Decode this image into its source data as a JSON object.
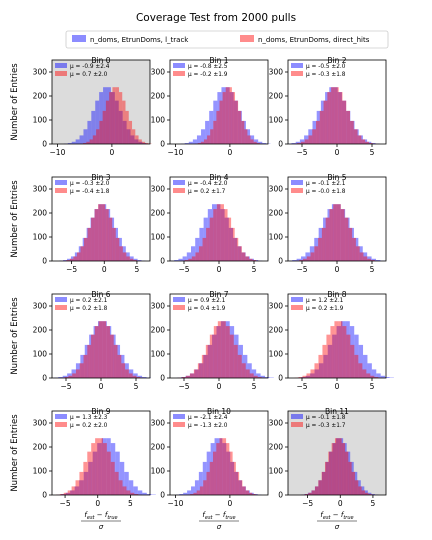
{
  "figure": {
    "title": "Coverage Test from 2000 pulls",
    "legend": [
      {
        "label": "n_doms, EtrunDoms, l_track",
        "color": "#7a7aff"
      },
      {
        "label": "n_doms, EtrunDoms, direct_hits",
        "color": "#ff7f7f"
      }
    ],
    "ylabel": "Number of Entries",
    "xlabel": "(f_est − f_true) / σ"
  },
  "colors": {
    "series_a": "#0000ff",
    "series_b": "#ff0000",
    "overlap_bg": "#dcdcdc"
  },
  "chart_data": [
    {
      "type": "bar",
      "title": "Bin 0",
      "highlight": true,
      "xlim": [
        -11,
        7
      ],
      "xticks": [
        -10,
        0
      ],
      "ylim": [
        0,
        350
      ],
      "yticks": [
        0,
        100,
        200,
        300
      ],
      "series": [
        {
          "name": "μ = -0.9 ±2.4",
          "mean": -0.9,
          "std": 2.4
        },
        {
          "name": "μ = 0.7 ±2.0",
          "mean": 0.7,
          "std": 2.0
        }
      ]
    },
    {
      "type": "bar",
      "title": "Bin 1",
      "highlight": false,
      "xlim": [
        -11,
        7
      ],
      "xticks": [
        -10,
        0
      ],
      "ylim": [
        0,
        350
      ],
      "yticks": [
        0,
        100,
        200,
        300
      ],
      "series": [
        {
          "name": "μ = -0.8 ±2.5",
          "mean": -0.8,
          "std": 2.5
        },
        {
          "name": "μ = -0.2 ±1.9",
          "mean": -0.2,
          "std": 1.9
        }
      ]
    },
    {
      "type": "bar",
      "title": "Bin 2",
      "highlight": false,
      "xlim": [
        -7,
        7
      ],
      "xticks": [
        -5,
        0,
        5
      ],
      "ylim": [
        0,
        350
      ],
      "yticks": [
        0,
        100,
        200,
        300
      ],
      "series": [
        {
          "name": "μ = -0.5 ±2.0",
          "mean": -0.5,
          "std": 2.0
        },
        {
          "name": "μ = -0.3 ±1.8",
          "mean": -0.3,
          "std": 1.8
        }
      ]
    },
    {
      "type": "bar",
      "title": "Bin 3",
      "highlight": false,
      "xlim": [
        -8,
        7
      ],
      "xticks": [
        -5,
        0,
        5
      ],
      "ylim": [
        0,
        350
      ],
      "yticks": [
        0,
        100,
        200,
        300
      ],
      "series": [
        {
          "name": "μ = -0.3 ±2.0",
          "mean": -0.3,
          "std": 2.0
        },
        {
          "name": "μ = -0.4 ±1.8",
          "mean": -0.4,
          "std": 1.8
        }
      ]
    },
    {
      "type": "bar",
      "title": "Bin 4",
      "highlight": false,
      "xlim": [
        -7,
        7
      ],
      "xticks": [
        -5,
        0,
        5
      ],
      "ylim": [
        0,
        350
      ],
      "yticks": [
        0,
        100,
        200,
        300
      ],
      "series": [
        {
          "name": "μ = -0.4 ±2.0",
          "mean": -0.4,
          "std": 2.0
        },
        {
          "name": "μ = 0.2 ±1.7",
          "mean": 0.2,
          "std": 1.7
        }
      ]
    },
    {
      "type": "bar",
      "title": "Bin 5",
      "highlight": false,
      "xlim": [
        -7,
        7
      ],
      "xticks": [
        -5,
        0,
        5
      ],
      "ylim": [
        0,
        350
      ],
      "yticks": [
        0,
        100,
        200,
        300
      ],
      "series": [
        {
          "name": "μ = -0.1 ±2.1",
          "mean": -0.1,
          "std": 2.1
        },
        {
          "name": "μ = -0.0 ±1.8",
          "mean": 0.0,
          "std": 1.8
        }
      ]
    },
    {
      "type": "bar",
      "title": "Bin 6",
      "highlight": false,
      "xlim": [
        -7,
        7
      ],
      "xticks": [
        -5,
        0,
        5
      ],
      "ylim": [
        0,
        350
      ],
      "yticks": [
        0,
        100,
        200,
        300
      ],
      "series": [
        {
          "name": "μ = 0.2 ±2.1",
          "mean": 0.2,
          "std": 2.1
        },
        {
          "name": "μ = 0.2 ±1.8",
          "mean": 0.2,
          "std": 1.8
        }
      ]
    },
    {
      "type": "bar",
      "title": "Bin 7",
      "highlight": false,
      "xlim": [
        -7,
        7
      ],
      "xticks": [
        -5,
        0,
        5
      ],
      "ylim": [
        0,
        350
      ],
      "yticks": [
        0,
        100,
        200,
        300
      ],
      "series": [
        {
          "name": "μ = 0.9 ±2.1",
          "mean": 0.9,
          "std": 2.1
        },
        {
          "name": "μ = 0.4 ±1.9",
          "mean": 0.4,
          "std": 1.9
        }
      ]
    },
    {
      "type": "bar",
      "title": "Bin 8",
      "highlight": false,
      "xlim": [
        -7,
        7
      ],
      "xticks": [
        -5,
        0,
        5
      ],
      "ylim": [
        0,
        350
      ],
      "yticks": [
        0,
        100,
        200,
        300
      ],
      "series": [
        {
          "name": "μ = 1.2 ±2.1",
          "mean": 1.2,
          "std": 2.1
        },
        {
          "name": "μ = 0.2 ±1.9",
          "mean": 0.2,
          "std": 1.9
        }
      ]
    },
    {
      "type": "bar",
      "title": "Bin 9",
      "highlight": false,
      "xlim": [
        -7,
        8
      ],
      "xticks": [
        -5,
        0,
        5
      ],
      "ylim": [
        0,
        350
      ],
      "yticks": [
        0,
        100,
        200,
        300
      ],
      "series": [
        {
          "name": "μ = 1.3 ±2.3",
          "mean": 1.3,
          "std": 2.3
        },
        {
          "name": "μ = 0.2 ±2.0",
          "mean": 0.2,
          "std": 2.0
        }
      ]
    },
    {
      "type": "bar",
      "title": "Bin 10",
      "highlight": false,
      "xlim": [
        -11,
        7
      ],
      "xticks": [
        -10,
        0
      ],
      "ylim": [
        0,
        350
      ],
      "yticks": [
        0,
        100,
        200,
        300
      ],
      "series": [
        {
          "name": "μ = -2.1 ±2.4",
          "mean": -2.1,
          "std": 2.4
        },
        {
          "name": "μ = -1.3 ±2.0",
          "mean": -1.3,
          "std": 2.0
        }
      ]
    },
    {
      "type": "bar",
      "title": "Bin 11",
      "highlight": true,
      "xlim": [
        -8,
        7
      ],
      "xticks": [
        -5,
        0,
        5
      ],
      "ylim": [
        0,
        350
      ],
      "yticks": [
        0,
        100,
        200,
        300
      ],
      "series": [
        {
          "name": "μ = -0.1 ±1.8",
          "mean": -0.1,
          "std": 1.8
        },
        {
          "name": "μ = -0.3 ±1.7",
          "mean": -0.3,
          "std": 1.7
        }
      ]
    }
  ]
}
